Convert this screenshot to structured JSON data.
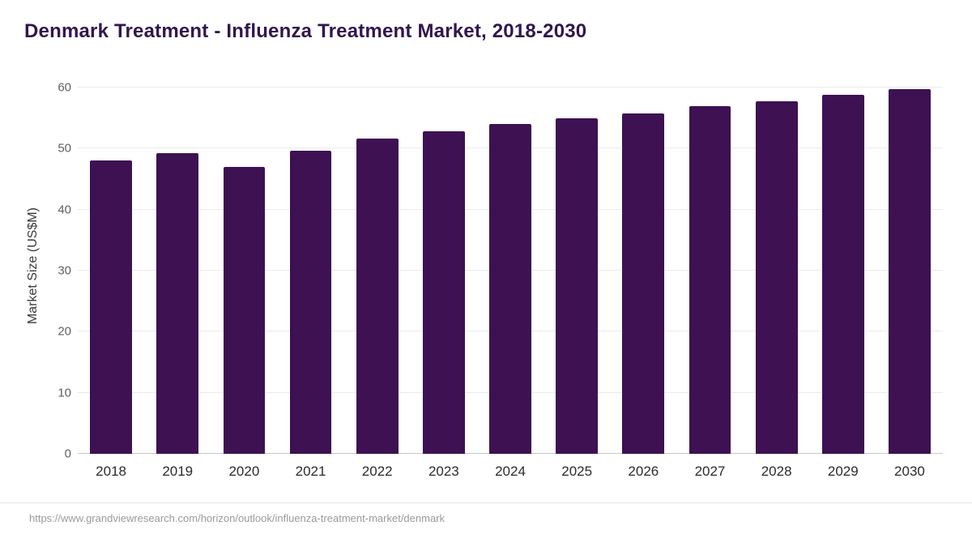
{
  "title": "Denmark Treatment - Influenza Treatment Market, 2018-2030",
  "footer": {
    "source_url": "https://www.grandviewresearch.com/horizon/outlook/influenza-treatment-market/denmark"
  },
  "colors": {
    "bar": "#3d1152",
    "title": "#31164e",
    "gridline": "#ebebeb",
    "axis_line": "#c8c8c8"
  },
  "chart_data": {
    "type": "bar",
    "title": "Denmark Treatment - Influenza Treatment Market, 2018-2030",
    "categories": [
      "2018",
      "2019",
      "2020",
      "2021",
      "2022",
      "2023",
      "2024",
      "2025",
      "2026",
      "2027",
      "2028",
      "2029",
      "2030"
    ],
    "values": [
      48.1,
      49.2,
      47.0,
      49.7,
      51.7,
      52.9,
      54.0,
      54.9,
      55.8,
      56.9,
      57.8,
      58.8,
      59.8
    ],
    "xlabel": "",
    "ylabel": "Market Size (US$M)",
    "ylim": [
      0,
      60
    ],
    "yticks": [
      0,
      10,
      20,
      30,
      40,
      50,
      60
    ],
    "grid": true,
    "legend_position": "none"
  }
}
